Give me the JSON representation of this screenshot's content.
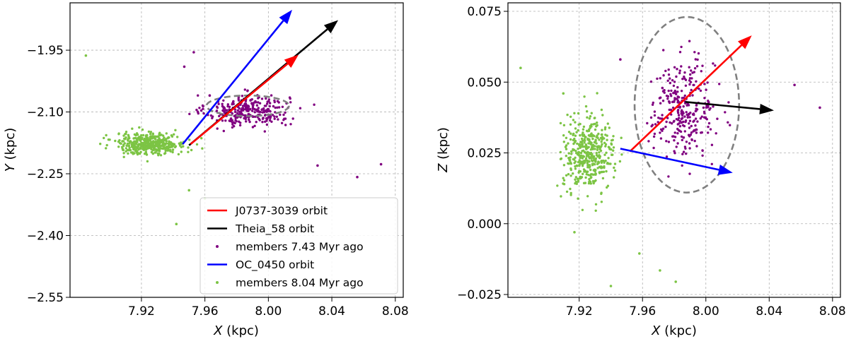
{
  "chart_data": [
    {
      "type": "scatter",
      "id": "xy",
      "xlabel_var": "X",
      "xlabel_unit": " (kpc)",
      "ylabel_var": "Y",
      "ylabel_unit": " (kpc)",
      "xlim": [
        7.875,
        8.085
      ],
      "ylim": [
        -2.55,
        -1.835
      ],
      "xticks": [
        7.92,
        7.96,
        8.0,
        8.04,
        8.08
      ],
      "xtick_labels": [
        "7.92",
        "7.96",
        "8.00",
        "8.04",
        "8.08"
      ],
      "yticks": [
        -1.95,
        -2.1,
        -2.25,
        -2.4,
        -2.55
      ],
      "ytick_labels": [
        "−1.95",
        "−2.10",
        "−2.25",
        "−2.40",
        "−2.55"
      ],
      "grid": true,
      "legend_position": "bottom-right",
      "clusters": [
        {
          "name": "members 7.43 Myr ago",
          "color": "#800080",
          "n": 300,
          "center": [
            7.987,
            -2.097
          ],
          "spread": [
            0.013,
            0.019
          ]
        },
        {
          "name": "members 8.04 Myr ago",
          "color": "#7cc444",
          "n": 420,
          "center": [
            7.926,
            -2.177
          ],
          "spread": [
            0.011,
            0.013
          ]
        }
      ],
      "outliers": [
        {
          "series": "members 8.04 Myr ago",
          "x": 7.885,
          "y": -1.963
        },
        {
          "series": "members 8.04 Myr ago",
          "x": 7.942,
          "y": -2.372
        },
        {
          "series": "members 8.04 Myr ago",
          "x": 7.95,
          "y": -2.29
        },
        {
          "series": "members 8.04 Myr ago",
          "x": 7.96,
          "y": -2.31
        },
        {
          "series": "members 7.43 Myr ago",
          "x": 7.947,
          "y": -1.99
        },
        {
          "series": "members 7.43 Myr ago",
          "x": 7.953,
          "y": -1.955
        },
        {
          "series": "members 7.43 Myr ago",
          "x": 7.963,
          "y": -2.06
        },
        {
          "series": "members 7.43 Myr ago",
          "x": 8.031,
          "y": -2.23
        },
        {
          "series": "members 7.43 Myr ago",
          "x": 8.056,
          "y": -2.258
        },
        {
          "series": "members 7.43 Myr ago",
          "x": 8.071,
          "y": -2.227
        }
      ],
      "arrows": [
        {
          "name": "OC_0450 orbit",
          "color": "#0000ff",
          "from": [
            7.946,
            -2.178
          ],
          "to": [
            8.015,
            -1.852
          ]
        },
        {
          "name": "Theia_58 orbit",
          "color": "#000000",
          "from": [
            7.95,
            -2.181
          ],
          "to": [
            8.044,
            -1.877
          ]
        },
        {
          "name": "J0737-3039 orbit",
          "color": "#ff0000",
          "from": [
            7.951,
            -2.178
          ],
          "to": [
            8.019,
            -1.961
          ]
        }
      ],
      "ellipse": {
        "center": [
          7.987,
          -2.085
        ],
        "rx": 0.026,
        "ry": 0.025,
        "style": "dashed",
        "color": "#808080"
      },
      "legend": [
        {
          "label": "J0737-3039 orbit",
          "kind": "line",
          "color": "#ff0000"
        },
        {
          "label": "Theia_58 orbit",
          "kind": "line",
          "color": "#000000"
        },
        {
          "label": "members 7.43 Myr ago",
          "kind": "dot",
          "color": "#800080"
        },
        {
          "label": "OC_0450 orbit",
          "kind": "line",
          "color": "#0000ff"
        },
        {
          "label": "members 8.04 Myr ago",
          "kind": "dot",
          "color": "#7cc444"
        }
      ]
    },
    {
      "type": "scatter",
      "id": "xz",
      "xlabel_var": "X",
      "xlabel_unit": " (kpc)",
      "ylabel_var": "Z",
      "ylabel_unit": " (kpc)",
      "xlim": [
        7.875,
        8.085
      ],
      "ylim": [
        -0.026,
        0.078
      ],
      "xticks": [
        7.92,
        7.96,
        8.0,
        8.04,
        8.08
      ],
      "xtick_labels": [
        "7.92",
        "7.96",
        "8.00",
        "8.04",
        "8.08"
      ],
      "yticks": [
        0.075,
        0.05,
        0.025,
        0.0,
        -0.025
      ],
      "ytick_labels": [
        "0.075",
        "0.050",
        "0.025",
        "0.000",
        "−0.025"
      ],
      "grid": true,
      "clusters": [
        {
          "name": "members 7.43 Myr ago",
          "color": "#800080",
          "n": 300,
          "center": [
            7.986,
            0.0405
          ],
          "spread": [
            0.01,
            0.0085
          ]
        },
        {
          "name": "members 8.04 Myr ago",
          "color": "#7cc444",
          "n": 420,
          "center": [
            7.926,
            0.0245
          ],
          "spread": [
            0.008,
            0.0065
          ]
        }
      ],
      "outliers": [
        {
          "series": "members 8.04 Myr ago",
          "x": 7.883,
          "y": 0.055
        },
        {
          "series": "members 8.04 Myr ago",
          "x": 7.91,
          "y": 0.046
        },
        {
          "series": "members 8.04 Myr ago",
          "x": 7.917,
          "y": -0.003
        },
        {
          "series": "members 8.04 Myr ago",
          "x": 7.958,
          "y": -0.0105
        },
        {
          "series": "members 8.04 Myr ago",
          "x": 7.971,
          "y": -0.0165
        },
        {
          "series": "members 8.04 Myr ago",
          "x": 7.94,
          "y": -0.022
        },
        {
          "series": "members 8.04 Myr ago",
          "x": 7.981,
          "y": -0.0205
        },
        {
          "series": "members 7.43 Myr ago",
          "x": 8.056,
          "y": 0.049
        },
        {
          "series": "members 7.43 Myr ago",
          "x": 8.072,
          "y": 0.041
        },
        {
          "series": "members 7.43 Myr ago",
          "x": 7.946,
          "y": 0.058
        }
      ],
      "arrows": [
        {
          "name": "J0737-3039 orbit",
          "color": "#ff0000",
          "from": [
            7.952,
            0.0255
          ],
          "to": [
            8.029,
            0.0665
          ]
        },
        {
          "name": "Theia_58 orbit",
          "color": "#000000",
          "from": [
            7.987,
            0.043
          ],
          "to": [
            8.043,
            0.04
          ]
        },
        {
          "name": "OC_0450 orbit",
          "color": "#0000ff",
          "from": [
            7.946,
            0.0265
          ],
          "to": [
            8.017,
            0.018
          ]
        }
      ],
      "ellipse": {
        "center": [
          7.988,
          0.042
        ],
        "rx": 0.033,
        "ry": 0.031,
        "style": "dashed",
        "color": "#808080"
      }
    }
  ]
}
